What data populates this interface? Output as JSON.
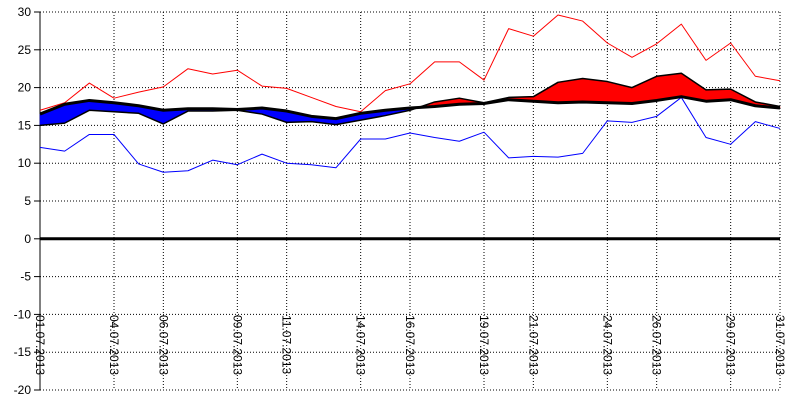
{
  "chart_data": {
    "type": "line",
    "title": "",
    "xlabel": "",
    "ylabel": "",
    "ylim": [
      -20,
      30
    ],
    "yticks": [
      -20,
      -15,
      -10,
      -5,
      0,
      5,
      10,
      15,
      20,
      25,
      30
    ],
    "grid": true,
    "x_dates": [
      "01.07.2013",
      "02.07.2013",
      "03.07.2013",
      "04.07.2013",
      "05.07.2013",
      "06.07.2013",
      "07.07.2013",
      "08.07.2013",
      "09.07.2013",
      "10.07.2013",
      "11.07.2013",
      "12.07.2013",
      "13.07.2013",
      "14.07.2013",
      "15.07.2013",
      "16.07.2013",
      "17.07.2013",
      "18.07.2013",
      "19.07.2013",
      "20.07.2013",
      "21.07.2013",
      "22.07.2013",
      "23.07.2013",
      "24.07.2013",
      "25.07.2013",
      "26.07.2013",
      "27.07.2013",
      "28.07.2013",
      "29.07.2013",
      "30.07.2013",
      "31.07.2013"
    ],
    "xtick_labels": [
      "01.07.2013",
      "04.07.2013",
      "06.07.2013",
      "09.07.2013",
      "11.07.2013",
      "14.07.2013",
      "16.07.2013",
      "19.07.2013",
      "21.07.2013",
      "24.07.2013",
      "26.07.2013",
      "29.07.2013",
      "31.07.2013"
    ],
    "series": [
      {
        "color": "#ff0000",
        "values": [
          17.0,
          18.0,
          20.6,
          18.6,
          19.4,
          20.1,
          22.5,
          21.8,
          22.3,
          20.2,
          19.9,
          18.7,
          17.5,
          16.8,
          19.6,
          20.5,
          23.4,
          23.4,
          21.0,
          27.8,
          26.8,
          29.6,
          28.8,
          25.9,
          24.0,
          25.8,
          28.4,
          23.6,
          25.9,
          21.5,
          20.9
        ]
      },
      {
        "color": "#0000ff",
        "values": [
          12.1,
          11.6,
          13.8,
          13.8,
          9.9,
          8.8,
          9.0,
          10.4,
          9.8,
          11.2,
          10.0,
          9.8,
          9.4,
          13.2,
          13.2,
          14.0,
          13.4,
          12.9,
          14.1,
          10.7,
          10.9,
          10.8,
          11.3,
          15.6,
          15.4,
          16.2,
          18.7,
          13.4,
          12.5,
          15.5,
          14.6
        ]
      },
      {
        "color": "#000000",
        "values": [
          16.5,
          17.8,
          18.3,
          18.0,
          17.6,
          17.0,
          17.2,
          17.2,
          17.1,
          17.3,
          16.9,
          16.2,
          15.9,
          16.6,
          17.0,
          17.3,
          17.5,
          17.8,
          17.9,
          18.4,
          18.2,
          18.0,
          18.1,
          18.0,
          17.9,
          18.3,
          18.8,
          18.2,
          18.4,
          17.6,
          17.3
        ]
      },
      {
        "color": "#000000",
        "values": [
          15.0,
          15.3,
          17.0,
          16.8,
          16.6,
          15.2,
          16.9,
          16.9,
          17.0,
          16.5,
          15.4,
          15.5,
          15.1,
          15.7,
          16.3,
          17.0,
          18.1,
          18.6,
          18.0,
          18.7,
          18.8,
          20.7,
          21.2,
          20.8,
          20.0,
          21.5,
          21.9,
          19.7,
          19.8,
          18.1,
          17.5
        ]
      }
    ],
    "fill_between": [
      {
        "series_a": 2,
        "series_b": 3,
        "color_when_b_above": "#ff0000",
        "color_when_b_below": "#0000ff"
      }
    ]
  }
}
